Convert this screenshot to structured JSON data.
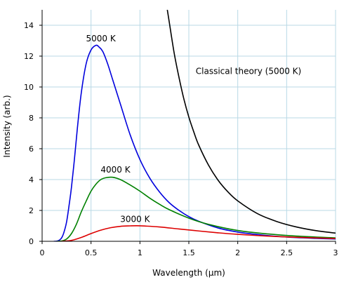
{
  "chart_data": {
    "type": "line",
    "title": "",
    "xlabel": "Wavelength (μm)",
    "ylabel": "Intensity (arb.)",
    "xlim": [
      0,
      3
    ],
    "ylim": [
      0,
      15
    ],
    "grid": true,
    "x_ticks": [
      "0",
      "0.5",
      "1",
      "1.5",
      "2",
      "2.5",
      "3"
    ],
    "y_ticks": [
      "0",
      "2",
      "4",
      "6",
      "8",
      "10",
      "12",
      "14"
    ],
    "x_tick_values": [
      0,
      0.5,
      1,
      1.5,
      2,
      2.5,
      3
    ],
    "y_tick_values": [
      0,
      2,
      4,
      6,
      8,
      10,
      12,
      14
    ],
    "series": [
      {
        "color": "#0000dd",
        "x": [
          0.12,
          0.15,
          0.18,
          0.2,
          0.22,
          0.25,
          0.28,
          0.3,
          0.33,
          0.36,
          0.4,
          0.45,
          0.5,
          0.55,
          0.58,
          0.62,
          0.67,
          0.72,
          0.8,
          0.9,
          1.0,
          1.1,
          1.2,
          1.3,
          1.4,
          1.5,
          1.6,
          1.8,
          2.0,
          2.2,
          2.4,
          2.6,
          2.8,
          3.0
        ],
        "y": [
          0.0,
          0.01,
          0.09,
          0.23,
          0.52,
          1.25,
          2.53,
          3.5,
          5.3,
          7.3,
          9.6,
          11.5,
          12.4,
          12.7,
          12.6,
          12.3,
          11.5,
          10.5,
          8.9,
          6.9,
          5.3,
          4.1,
          3.2,
          2.5,
          2.0,
          1.6,
          1.3,
          0.86,
          0.6,
          0.44,
          0.32,
          0.24,
          0.19,
          0.15
        ],
        "label": "5000 K"
      },
      {
        "color": "#008000",
        "x": [
          0.15,
          0.2,
          0.25,
          0.3,
          0.35,
          0.4,
          0.45,
          0.5,
          0.55,
          0.6,
          0.65,
          0.72,
          0.8,
          0.9,
          1.0,
          1.1,
          1.2,
          1.3,
          1.5,
          1.7,
          2.0,
          2.3,
          2.6,
          3.0
        ],
        "y": [
          0.0,
          0.02,
          0.15,
          0.5,
          1.1,
          1.9,
          2.6,
          3.25,
          3.7,
          4.0,
          4.12,
          4.15,
          4.0,
          3.65,
          3.25,
          2.8,
          2.4,
          2.05,
          1.5,
          1.1,
          0.7,
          0.48,
          0.34,
          0.22
        ],
        "label": "4000 K"
      },
      {
        "color": "#dd0000",
        "x": [
          0.2,
          0.3,
          0.4,
          0.5,
          0.6,
          0.7,
          0.8,
          0.9,
          0.97,
          1.05,
          1.2,
          1.4,
          1.6,
          1.8,
          2.0,
          2.3,
          2.6,
          3.0
        ],
        "y": [
          0.0,
          0.06,
          0.25,
          0.5,
          0.72,
          0.88,
          0.97,
          1.0,
          1.01,
          0.99,
          0.93,
          0.8,
          0.67,
          0.55,
          0.45,
          0.34,
          0.26,
          0.18
        ],
        "label": "3000 K"
      },
      {
        "color": "#000000",
        "x": [
          1.28,
          1.3,
          1.35,
          1.4,
          1.45,
          1.5,
          1.55,
          1.6,
          1.7,
          1.8,
          1.9,
          2.0,
          2.2,
          2.4,
          2.6,
          2.8,
          3.0
        ],
        "y": [
          15.0,
          14.2,
          12.2,
          10.6,
          9.2,
          8.05,
          7.1,
          6.25,
          4.95,
          3.95,
          3.2,
          2.62,
          1.8,
          1.28,
          0.93,
          0.69,
          0.53
        ],
        "label": "Classical theory (5000 K)"
      }
    ],
    "annotations": [
      {
        "text": "5000 K",
        "x": 0.6,
        "y": 12.95
      },
      {
        "text": "4000 K",
        "x": 0.75,
        "y": 4.45
      },
      {
        "text": "3000 K",
        "x": 0.95,
        "y": 1.25
      },
      {
        "text": "Classical theory (5000 K)",
        "x": 1.57,
        "y": 10.85
      }
    ]
  }
}
